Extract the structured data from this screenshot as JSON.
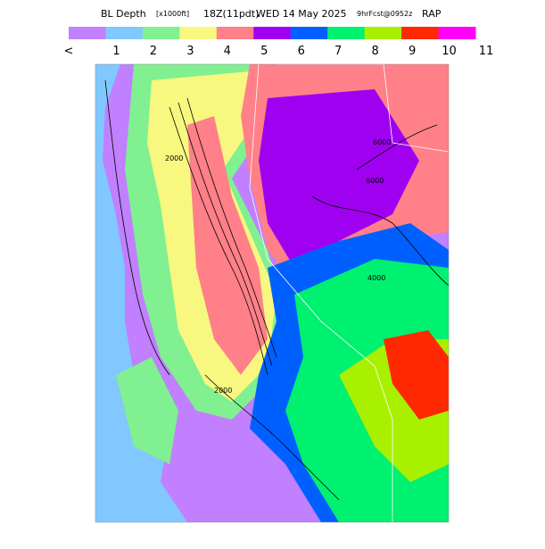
{
  "header": {
    "title_parts": [
      "BL Depth",
      "[x1000ft]",
      "18Z(11pdt)",
      "WED 14 May 2025",
      "9hrFcst@0952z",
      "RAP"
    ]
  },
  "colorbar": {
    "colors": [
      "#c080ff",
      "#80c8ff",
      "#80f090",
      "#f8f880",
      "#ff8088",
      "#a000f0",
      "#0060ff",
      "#00f070",
      "#a8f000",
      "#ff2800",
      "#ff00f8"
    ],
    "labels": [
      "<",
      "1",
      "2",
      "3",
      "4",
      "5",
      "6",
      "7",
      "8",
      "9",
      "10",
      "11"
    ]
  },
  "map": {
    "contour_labels": [
      "6000",
      "6000",
      "4000",
      "2000",
      "2000"
    ]
  }
}
